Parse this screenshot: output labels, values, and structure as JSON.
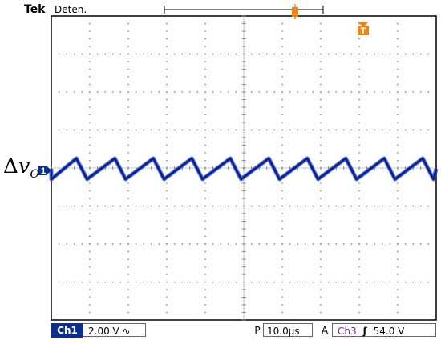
{
  "header": {
    "brand": "Tek",
    "run_state": "Deten."
  },
  "trace_label": {
    "delta": "Δ",
    "var": "v",
    "sub": "O"
  },
  "markers": {
    "channel_marker": "1",
    "trigger_marker": "T"
  },
  "status_bar": {
    "ch1_tag": "Ch1",
    "ch1_scale": "2.00 V ∿",
    "p_tag": "P",
    "timebase": "10.0µs",
    "a_tag": "A",
    "trigger_source": "Ch3",
    "trigger_slope": "ʃ",
    "trigger_level": "54.0 V"
  },
  "colors": {
    "trace": "#1a3fd6",
    "trigger": "#e8861a",
    "ch1": "#0c2f8f"
  },
  "waveform": {
    "periods": 10,
    "form": "sawtooth"
  }
}
